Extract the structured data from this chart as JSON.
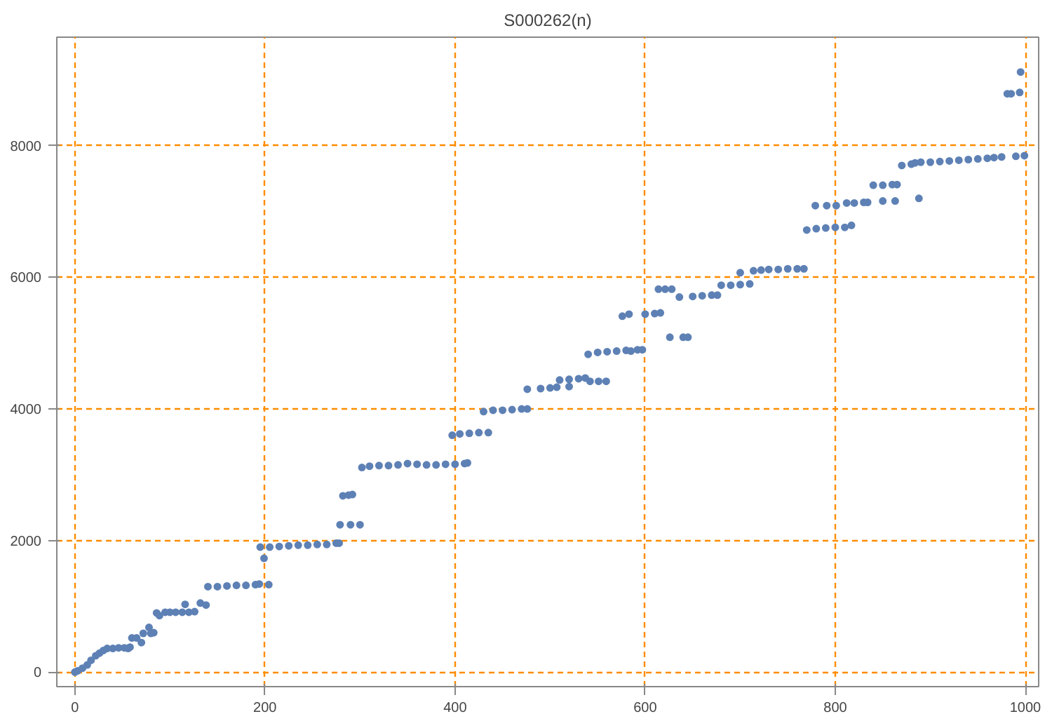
{
  "chart_data": {
    "type": "scatter",
    "title": "S000262(n)",
    "series": [
      {
        "color": "#5e81b5",
        "x": [
          0,
          3,
          8,
          13,
          17,
          22,
          26,
          30,
          34,
          40,
          46,
          52,
          56,
          58,
          60,
          65,
          70,
          72,
          78,
          80,
          83,
          86,
          89,
          95,
          100,
          106,
          113,
          116,
          120,
          126,
          132,
          138,
          140,
          150,
          160,
          170,
          180,
          190,
          194,
          195,
          199,
          204,
          205,
          215,
          225,
          235,
          245,
          255,
          265,
          275,
          278,
          279,
          282,
          288,
          290,
          292,
          300,
          302,
          310,
          320,
          330,
          340,
          350,
          360,
          370,
          380,
          390,
          397,
          400,
          405,
          410,
          413,
          415,
          425,
          430,
          435,
          440,
          450,
          460,
          470,
          476,
          476,
          490,
          500,
          507,
          510,
          520,
          520,
          530,
          537,
          540,
          542,
          551,
          559,
          550,
          560,
          570,
          580,
          576,
          583,
          585,
          592,
          597,
          600,
          610,
          616,
          614,
          621,
          628,
          626,
          636,
          645,
          640,
          650,
          660,
          670,
          676,
          680,
          690,
          700,
          700,
          710,
          714,
          722,
          730,
          740,
          750,
          760,
          767,
          770,
          779,
          780,
          790,
          791,
          800,
          801,
          810,
          812,
          817,
          820,
          830,
          834,
          840,
          850,
          850,
          860,
          863,
          865,
          870,
          880,
          884,
          888,
          890,
          900,
          910,
          920,
          930,
          940,
          950,
          960,
          967,
          975,
          981,
          985,
          990,
          994,
          995,
          999
        ],
        "values": [
          0,
          20,
          60,
          110,
          180,
          250,
          290,
          330,
          360,
          360,
          370,
          370,
          360,
          380,
          520,
          520,
          450,
          590,
          680,
          590,
          600,
          900,
          860,
          910,
          910,
          910,
          910,
          1030,
          910,
          920,
          1050,
          1020,
          1300,
          1300,
          1310,
          1320,
          1320,
          1330,
          1340,
          1900,
          1730,
          1330,
          1900,
          1910,
          1920,
          1930,
          1930,
          1940,
          1940,
          1960,
          1960,
          2240,
          2680,
          2690,
          2240,
          2700,
          2240,
          3110,
          3130,
          3140,
          3140,
          3150,
          3170,
          3160,
          3150,
          3150,
          3160,
          3600,
          3160,
          3620,
          3170,
          3180,
          3630,
          3640,
          3960,
          3640,
          3980,
          3980,
          3990,
          4000,
          4000,
          4300,
          4310,
          4320,
          4330,
          4440,
          4340,
          4450,
          4460,
          4470,
          4830,
          4420,
          4420,
          4420,
          4860,
          4870,
          4880,
          4890,
          5410,
          5440,
          4880,
          4900,
          4900,
          5440,
          5450,
          5460,
          5820,
          5820,
          5820,
          5090,
          5700,
          5090,
          5090,
          5710,
          5720,
          5730,
          5730,
          5880,
          5880,
          5890,
          6070,
          5900,
          6100,
          6110,
          6120,
          6120,
          6130,
          6130,
          6130,
          6720,
          7090,
          6740,
          6750,
          7090,
          6760,
          7090,
          6760,
          7130,
          6790,
          7130,
          7140,
          7140,
          7400,
          7160,
          7400,
          7410,
          7160,
          7410,
          7700,
          7720,
          7740,
          7200,
          7750,
          7750,
          7760,
          7770,
          7780,
          7790,
          7800,
          7810,
          7820,
          7830,
          8790,
          8790,
          7840,
          8810,
          9120,
          7850
        ]
      }
    ],
    "xlim": [
      -19,
      1014
    ],
    "ylim": [
      -220,
      9650
    ],
    "xticks": [
      0,
      200,
      400,
      600,
      800,
      1000
    ],
    "yticks": [
      0,
      2000,
      4000,
      6000,
      8000
    ],
    "grid": true,
    "marker": "circle"
  }
}
